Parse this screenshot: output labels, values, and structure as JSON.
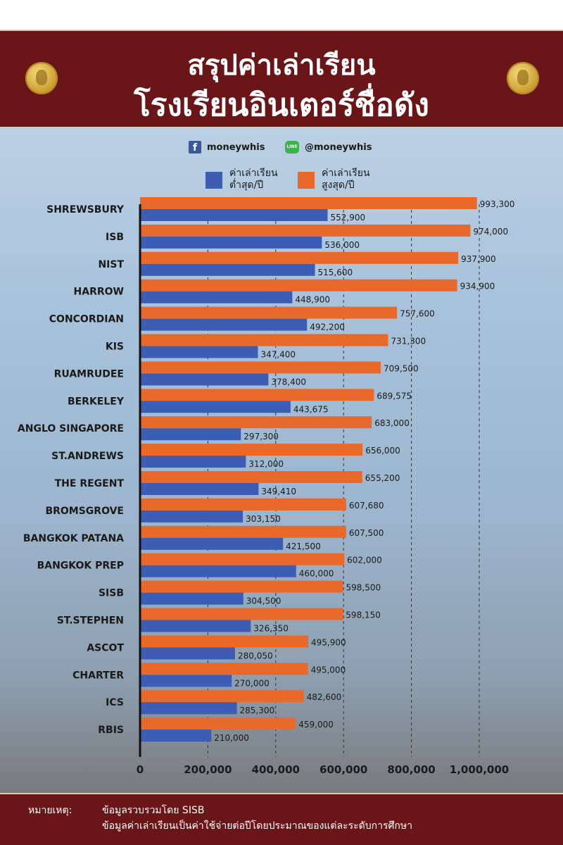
{
  "header": {
    "title_line1": "สรุปค่าเล่าเรียน",
    "title_line2": "โรงเรียนอินเตอร์ชื่อดัง"
  },
  "social": {
    "facebook_label": "moneywhis",
    "line_label": "@moneywhis",
    "line_icon_text": "LINE"
  },
  "colors": {
    "min_fee": "#3c5db3",
    "max_fee": "#e8692a",
    "banner": "#6a1518"
  },
  "legend": {
    "min": {
      "line1": "ค่าเล่าเรียน",
      "line2": "ต่ำสุด/ปี"
    },
    "max": {
      "line1": "ค่าเล่าเรียน",
      "line2": "สูงสุด/ปี"
    }
  },
  "chart_data": {
    "type": "bar",
    "orientation": "horizontal",
    "categories": [
      "SHREWSBURY",
      "ISB",
      "NIST",
      "HARROW",
      "CONCORDIAN",
      "KIS",
      "RUAMRUDEE",
      "BERKELEY",
      "ANGLO SINGAPORE",
      "ST.ANDREWS",
      "THE REGENT",
      "BROMSGROVE",
      "BANGKOK PATANA",
      "BANGKOK PREP",
      "SISB",
      "ST.STEPHEN",
      "ASCOT",
      "CHARTER",
      "ICS",
      "RBIS"
    ],
    "series": [
      {
        "name": "ค่าเล่าเรียนสูงสุด/ปี",
        "values": [
          993300,
          974000,
          937900,
          934900,
          757600,
          731300,
          709500,
          689575,
          683000,
          656000,
          655200,
          607680,
          607500,
          602000,
          598500,
          598150,
          495900,
          495000,
          482600,
          459000
        ],
        "labels": [
          "993,300",
          "974,000",
          "937,900",
          "934,900",
          "757,600",
          "731,300",
          "709,500",
          "689,575",
          "683,000",
          "656,000",
          "655,200",
          "607,680",
          "607,500",
          "602,000",
          "598,500",
          "598,150",
          "495,900",
          "495,000",
          "482,600",
          "459,000"
        ]
      },
      {
        "name": "ค่าเล่าเรียนต่ำสุด/ปี",
        "values": [
          552900,
          536000,
          515600,
          448900,
          492200,
          347400,
          378400,
          443675,
          297300,
          312000,
          349410,
          303150,
          421500,
          460000,
          304500,
          326350,
          280050,
          270000,
          285300,
          210000
        ],
        "labels": [
          "552,900",
          "536,000",
          "515,600",
          "448,900",
          "492,200",
          "347,400",
          "378,400",
          "443,675",
          "297,300",
          "312,000",
          "349,410",
          "303,150",
          "421,500",
          "460,000",
          "304,500",
          "326,350",
          "280,050",
          "270,000",
          "285,300",
          "210,000"
        ]
      }
    ],
    "xlim": [
      0,
      1000000
    ],
    "xticks": [
      0,
      200000,
      400000,
      600000,
      800000,
      1000000
    ],
    "xtick_labels": [
      "0",
      "200,000",
      "400,000",
      "600,000",
      "800,000",
      "1,000,000"
    ],
    "grid": "vertical dashed"
  },
  "footer": {
    "note_label": "หมายเหตุ:",
    "note_line1": "ข้อมูลรวบรวมโดย SISB",
    "note_line2": "ข้อมูลค่าเล่าเรียนเป็นค่าใช้จ่ายต่อปีโดยประมาณของแต่ละระดับการศึกษา"
  }
}
